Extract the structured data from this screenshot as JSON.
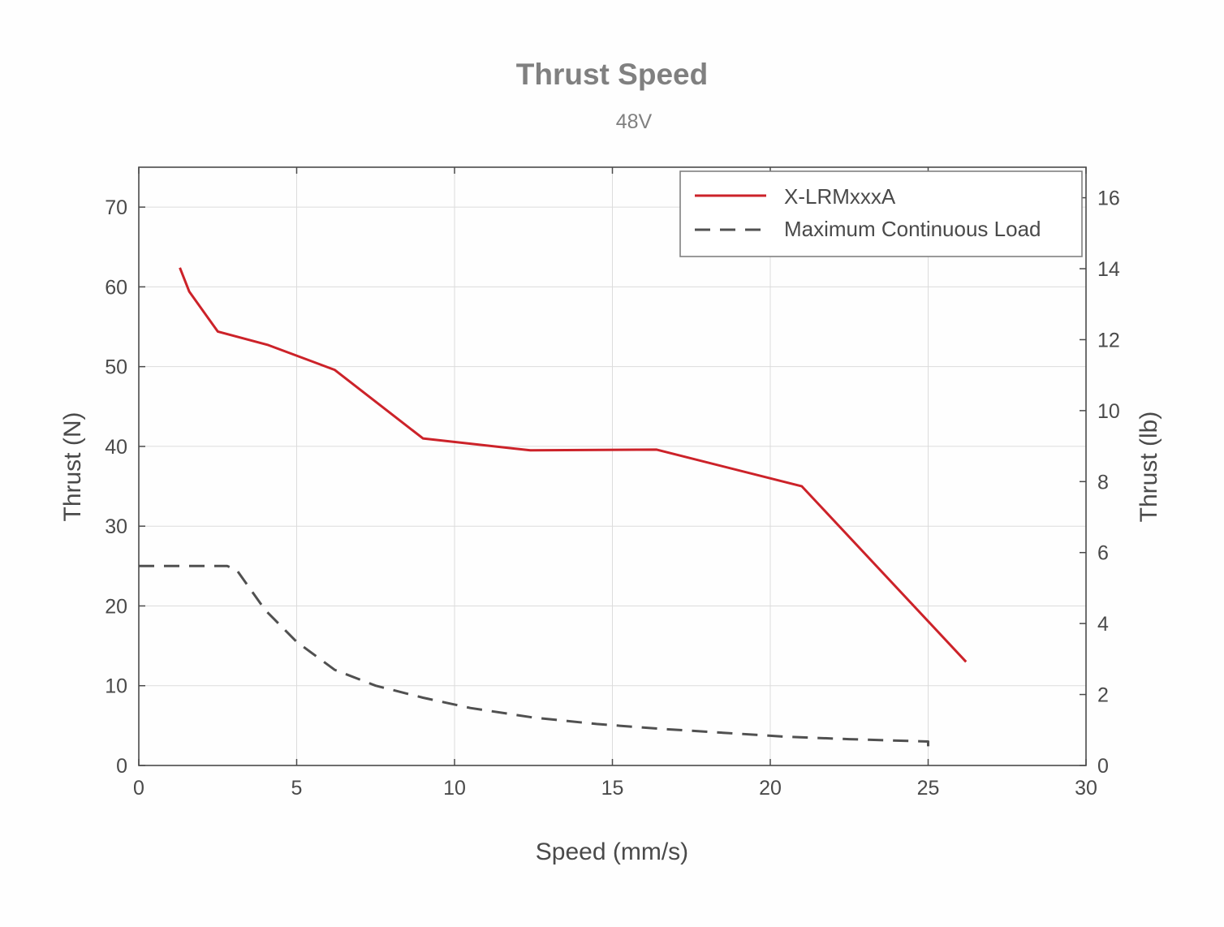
{
  "chart_data": {
    "type": "line",
    "title": "Thrust Speed",
    "subtitle": "48V",
    "xlabel": "Speed (mm/s)",
    "ylabel": "Thrust (N)",
    "y2label": "Thrust (lb)",
    "xlim": [
      0,
      30
    ],
    "ylim": [
      0,
      75
    ],
    "y2lim": [
      0,
      16.86
    ],
    "xticks": [
      "0",
      "5",
      "10",
      "15",
      "20",
      "25",
      "30"
    ],
    "xtick_values": [
      0,
      5,
      10,
      15,
      20,
      25,
      30
    ],
    "yticks": [
      "0",
      "10",
      "20",
      "30",
      "40",
      "50",
      "60",
      "70"
    ],
    "ytick_values": [
      0,
      10,
      20,
      30,
      40,
      50,
      60,
      70
    ],
    "y2ticks": [
      "0",
      "2",
      "4",
      "6",
      "8",
      "10",
      "12",
      "14",
      "16"
    ],
    "y2tick_values": [
      0,
      2,
      4,
      6,
      8,
      10,
      12,
      14,
      16
    ],
    "grid": true,
    "legend_position": "top-right",
    "series": [
      {
        "name": "X-LRMxxxA",
        "color": "#cc2229",
        "style": "solid",
        "x": [
          1.3,
          1.6,
          2.5,
          4.1,
          6.2,
          9.0,
          12.4,
          16.4,
          21.0,
          26.2
        ],
        "y": [
          62.4,
          59.4,
          54.4,
          52.7,
          49.6,
          41.0,
          39.5,
          39.6,
          35.0,
          13.0
        ]
      },
      {
        "name": "Maximum Continuous Load",
        "color": "#505050",
        "style": "dashed",
        "x": [
          0,
          2.8,
          3.1,
          4.0,
          5.0,
          6.2,
          7.5,
          9.0,
          10.5,
          12.5,
          14.5,
          16.5,
          18.5,
          20.5,
          22.5,
          25.0,
          25.0
        ],
        "y": [
          25,
          25,
          24.5,
          19.5,
          15.5,
          12.0,
          10.0,
          8.5,
          7.2,
          6.0,
          5.2,
          4.6,
          4.1,
          3.6,
          3.3,
          3.0,
          2.4
        ]
      }
    ]
  }
}
